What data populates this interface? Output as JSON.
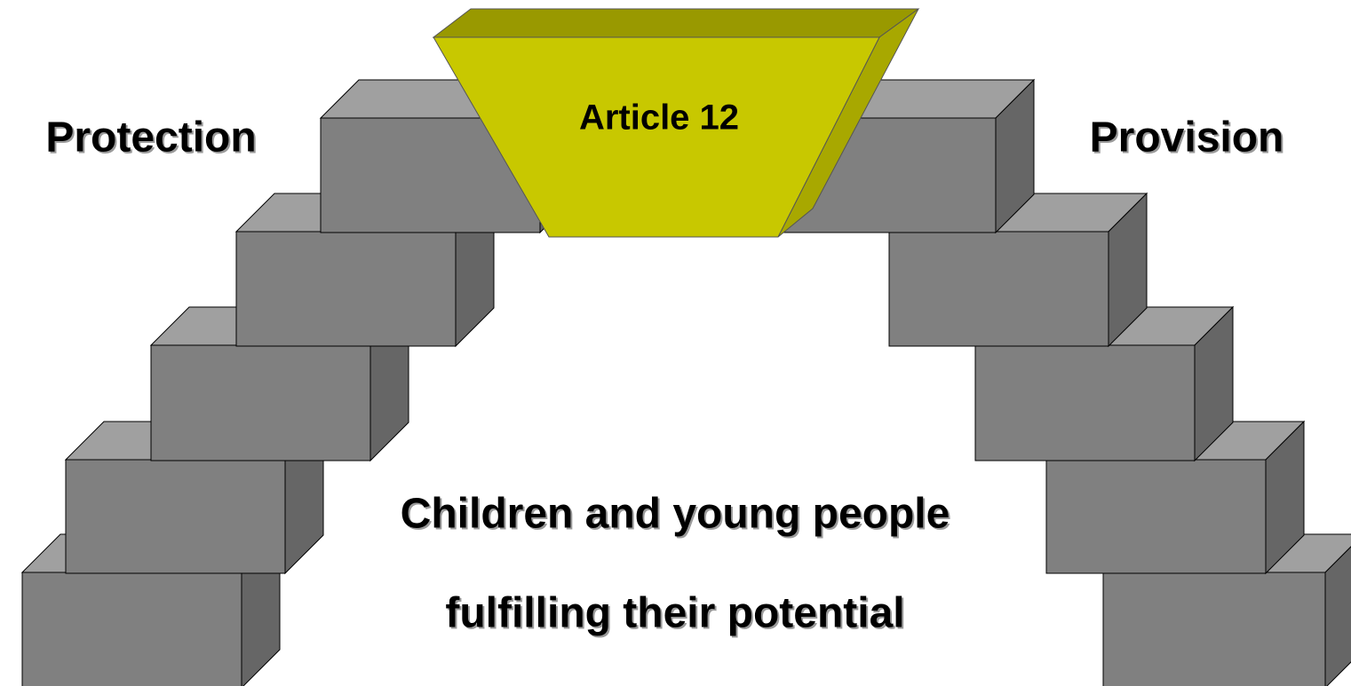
{
  "labels": {
    "left": "Protection",
    "right": "Provision",
    "keystone": "Article 12"
  },
  "caption": {
    "lines": [
      "Children and young people",
      "fulfilling their potential"
    ]
  }
}
